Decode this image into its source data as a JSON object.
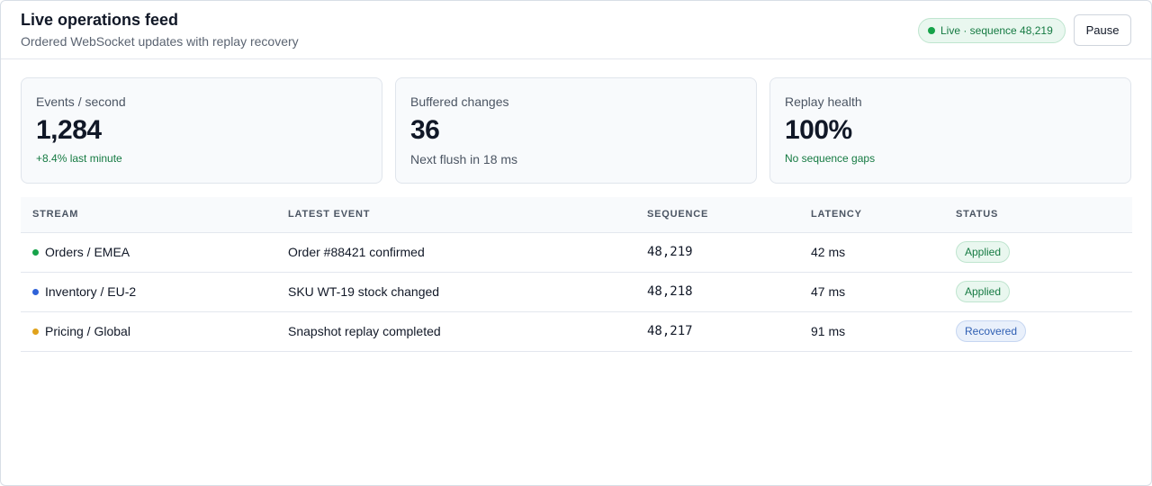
{
  "header": {
    "title": "Live operations feed",
    "subtitle": "Ordered WebSocket updates with replay recovery",
    "live_label": "Live · sequence 48,219",
    "pause_label": "Pause",
    "live_color": "#16a34a"
  },
  "metrics": [
    {
      "label": "Events / second",
      "value": "1,284",
      "note": "+8.4% last minute"
    },
    {
      "label": "Buffered changes",
      "value": "36",
      "note": "Next flush in 18 ms"
    },
    {
      "label": "Replay health",
      "value": "100%",
      "note": "No sequence gaps"
    }
  ],
  "table": {
    "columns": [
      "STREAM",
      "LATEST EVENT",
      "SEQUENCE",
      "LATENCY",
      "STATUS"
    ],
    "rows": [
      {
        "stream": "Orders / EMEA",
        "dot_color": "#16a34a",
        "event": "Order #88421 confirmed",
        "sequence": "48,219",
        "latency": "42 ms",
        "status": "Applied"
      },
      {
        "stream": "Inventory / EU-2",
        "dot_color": "#2f62d8",
        "event": "SKU WT-19 stock changed",
        "sequence": "48,218",
        "latency": "47 ms",
        "status": "Applied"
      },
      {
        "stream": "Pricing / Global",
        "dot_color": "#e0a21b",
        "event": "Snapshot replay completed",
        "sequence": "48,217",
        "latency": "91 ms",
        "status": "Recovered"
      }
    ]
  }
}
